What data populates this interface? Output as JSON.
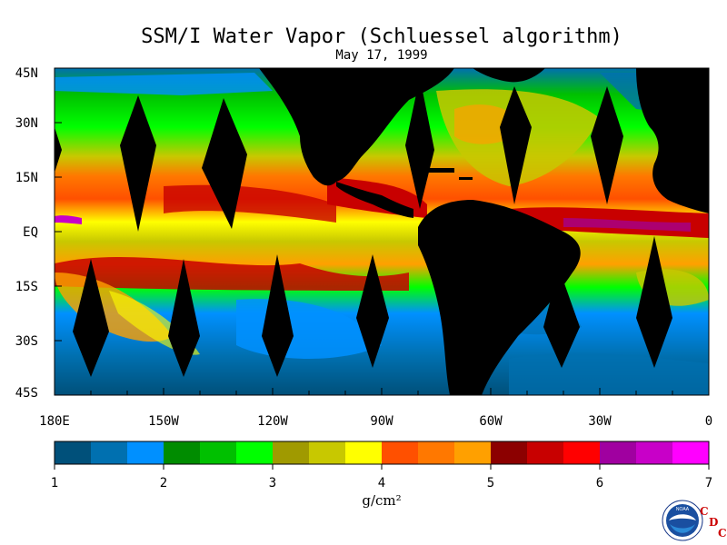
{
  "title": "SSM/I Water Vapor (Schluessel algorithm)",
  "date": "May 17, 1999",
  "lat_labels": [
    "45N",
    "30N",
    "15N",
    "EQ",
    "15S",
    "30S",
    "45S"
  ],
  "lon_labels": [
    "180E",
    "150W",
    "120W",
    "90W",
    "60W",
    "30W",
    "0"
  ],
  "colorbar": {
    "unit": "g/cm²",
    "tick_labels": [
      "1",
      "2",
      "3",
      "4",
      "5",
      "6",
      "7"
    ],
    "colors": [
      "#00507a",
      "#0070b0",
      "#0090ff",
      "#008c00",
      "#00c000",
      "#00ff00",
      "#a09a00",
      "#c8c800",
      "#ffff00",
      "#ff5000",
      "#ff7800",
      "#ffa000",
      "#8c0000",
      "#c80000",
      "#ff0000",
      "#a000a0",
      "#c800c8",
      "#ff00ff"
    ]
  },
  "logo": {
    "text": "NOAA",
    "cdc": [
      "C",
      "D",
      "C"
    ]
  }
}
